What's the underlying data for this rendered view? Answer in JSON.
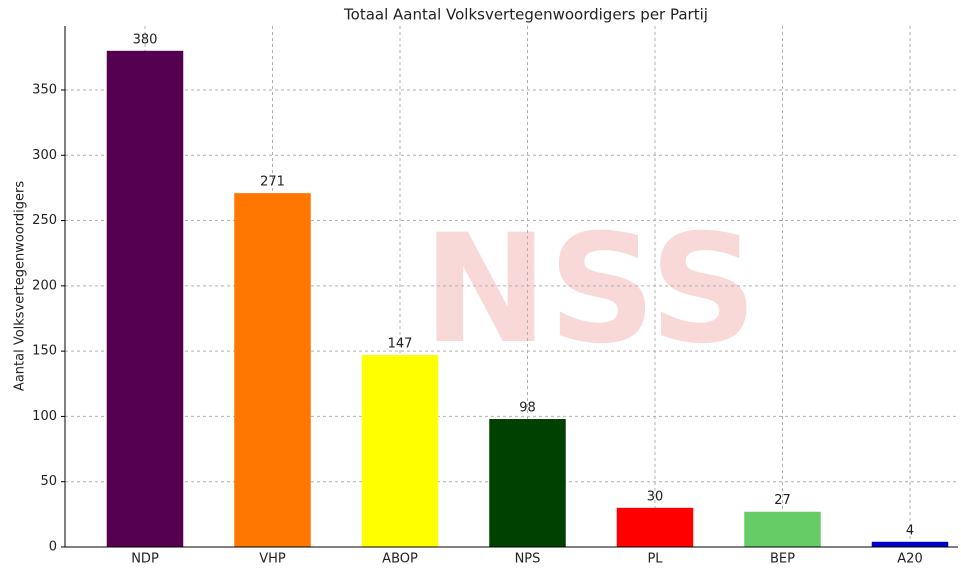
{
  "chart_data": {
    "type": "bar",
    "title": "Totaal Aantal Volksvertegenwoordigers per Partij",
    "y_label": "Aantal Volksvertegenwoordigers",
    "watermark": "NSS",
    "categories": [
      "NDP",
      "VHP",
      "ABOP",
      "NPS",
      "PL",
      "BEP",
      "A20"
    ],
    "values": [
      380,
      271,
      147,
      98,
      30,
      27,
      4
    ],
    "colors": [
      "#550050",
      "#ff7700",
      "#ffff00",
      "#004000",
      "#ff0000",
      "#66cc66",
      "#0000cc"
    ],
    "ylim": [
      0,
      399
    ],
    "yticks": [
      0,
      50,
      100,
      150,
      200,
      250,
      300,
      350
    ],
    "grid": true
  }
}
